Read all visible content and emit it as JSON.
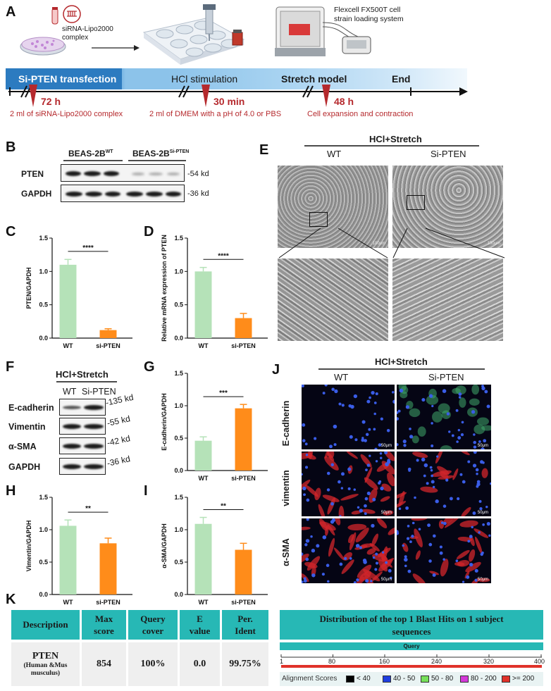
{
  "panels": {
    "A": "A",
    "B": "B",
    "C": "C",
    "D": "D",
    "E": "E",
    "F": "F",
    "G": "G",
    "H": "H",
    "I": "I",
    "J": "J",
    "K": "K"
  },
  "panelA": {
    "complex_label": "siRNA-Lipo2000\ncomplex",
    "flexcell_label": "Flexcell FX500T cell\nstrain loading system",
    "stages": [
      "Si-PTEN transfection",
      "HCl stimulation",
      "Stretch model",
      "End"
    ],
    "durations": [
      "72 h",
      "30 min",
      "48 h"
    ],
    "notes": [
      "2 ml of siRNA-Lipo2000 complex",
      "2 ml of DMEM with a pH of 4.0 or PBS",
      "Cell expansion and contraction"
    ]
  },
  "panelB": {
    "group1": "BEAS-2B",
    "group1_sup": "WT",
    "group2": "BEAS-2B",
    "group2_sup": "Si-PTEN",
    "rows": [
      "PTEN",
      "GAPDH"
    ],
    "sizes": [
      "-54 kd",
      "-36 kd"
    ]
  },
  "panelE": {
    "header": "HCl+Stretch",
    "cols": [
      "WT",
      "Si-PTEN"
    ]
  },
  "panelF": {
    "header": "HCl+Stretch",
    "cols": [
      "WT",
      "Si-PTEN"
    ],
    "rows": [
      "E-cadherin",
      "Vimentin",
      "α-SMA",
      "GAPDH"
    ],
    "sizes": [
      "-135 kd",
      "-55 kd",
      "-42 kd",
      "-36 kd"
    ]
  },
  "panelJ": {
    "header": "HCl+Stretch",
    "cols": [
      "WT",
      "Si-PTEN"
    ],
    "rows": [
      "E-cadherin",
      "vimentin",
      "α-SMA"
    ],
    "scale": "50μm"
  },
  "chart_data": [
    {
      "id": "C",
      "type": "bar",
      "categories": [
        "WT",
        "si-PTEN"
      ],
      "values": [
        1.1,
        0.12
      ],
      "errors": [
        0.08,
        0.02
      ],
      "ylabel": "PTEN/GAPDH",
      "ylim": [
        0,
        1.5
      ],
      "yticks": [
        "0.0",
        "0.5",
        "1.0",
        "1.5"
      ],
      "sig": "****",
      "colors": [
        "#b5e2b8",
        "#ff8c1a"
      ]
    },
    {
      "id": "D",
      "type": "bar",
      "categories": [
        "WT",
        "si-PTEN"
      ],
      "values": [
        1.0,
        0.3
      ],
      "errors": [
        0.06,
        0.07
      ],
      "ylabel": "Relative mRNA expression of PTEN",
      "ylim": [
        0,
        1.5
      ],
      "yticks": [
        "0.0",
        "0.5",
        "1.0",
        "1.5"
      ],
      "sig": "****",
      "colors": [
        "#b5e2b8",
        "#ff8c1a"
      ]
    },
    {
      "id": "G",
      "type": "bar",
      "categories": [
        "WT",
        "si-PTEN"
      ],
      "values": [
        0.46,
        0.96
      ],
      "errors": [
        0.06,
        0.06
      ],
      "ylabel": "E-cadherin/GAPDH",
      "ylim": [
        0,
        1.5
      ],
      "yticks": [
        "0.0",
        "0.5",
        "1.0",
        "1.5"
      ],
      "sig": "***",
      "colors": [
        "#b5e2b8",
        "#ff8c1a"
      ]
    },
    {
      "id": "H",
      "type": "bar",
      "categories": [
        "WT",
        "si-PTEN"
      ],
      "values": [
        1.06,
        0.79
      ],
      "errors": [
        0.09,
        0.08
      ],
      "ylabel": "Vimentin/GAPDH",
      "ylim": [
        0,
        1.5
      ],
      "yticks": [
        "0.0",
        "0.5",
        "1.0",
        "1.5"
      ],
      "sig": "**",
      "colors": [
        "#b5e2b8",
        "#ff8c1a"
      ]
    },
    {
      "id": "I",
      "type": "bar",
      "categories": [
        "WT",
        "si-PTEN"
      ],
      "values": [
        1.09,
        0.69
      ],
      "errors": [
        0.1,
        0.1
      ],
      "ylabel": "α-SMA/GAPDH",
      "ylim": [
        0,
        1.5
      ],
      "yticks": [
        "0.0",
        "0.5",
        "1.0",
        "1.5"
      ],
      "sig": "**",
      "colors": [
        "#b5e2b8",
        "#ff8c1a"
      ]
    }
  ],
  "panelK": {
    "headers": [
      "Description",
      "Max\nscore",
      "Query\ncover",
      "E\nvalue",
      "Per.\nIdent"
    ],
    "row": {
      "gene": "PTEN",
      "species": "(Human &Mus\nmusculus)",
      "max_score": "854",
      "query_cover": "100%",
      "e_value": "0.0",
      "per_ident": "99.75%"
    },
    "blast_title": "Distribution of the top 1 Blast Hits on 1 subject\nsequences",
    "query_label": "Query",
    "axis_ticks": [
      "1",
      "80",
      "160",
      "240",
      "320",
      "400"
    ],
    "alignment_label": "Alignment Scores",
    "legend": [
      {
        "label": "< 40",
        "color": "#000000"
      },
      {
        "label": "40 - 50",
        "color": "#1f3ee0"
      },
      {
        "label": "50 - 80",
        "color": "#76e05a"
      },
      {
        "label": "80 - 200",
        "color": "#d33ad8"
      },
      {
        "label": ">= 200",
        "color": "#e0322a"
      }
    ]
  }
}
